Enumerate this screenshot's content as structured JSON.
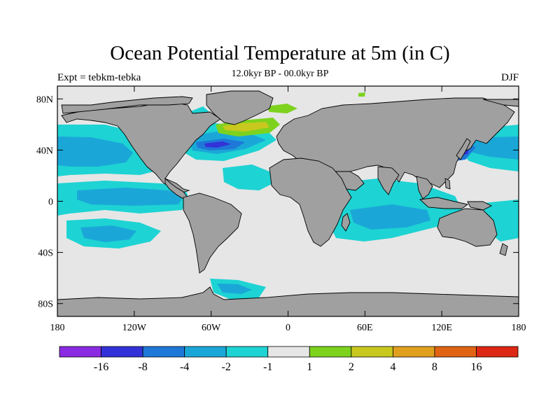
{
  "title": "Ocean Potential Temperature at 5m (in C)",
  "subtitle": "12.0kyr BP - 00.0kyr BP",
  "left_label": "Expt = tebkm-tebka",
  "right_label": "DJF",
  "lat_ticks": [
    {
      "label": "80N",
      "value": 80
    },
    {
      "label": "40N",
      "value": 40
    },
    {
      "label": "0",
      "value": 0
    },
    {
      "label": "40S",
      "value": -40
    },
    {
      "label": "80S",
      "value": -80
    }
  ],
  "lon_ticks": [
    {
      "label": "180",
      "value": -180
    },
    {
      "label": "120W",
      "value": -120
    },
    {
      "label": "60W",
      "value": -60
    },
    {
      "label": "0",
      "value": 0
    },
    {
      "label": "60E",
      "value": 60
    },
    {
      "label": "120E",
      "value": 120
    },
    {
      "label": "180",
      "value": 180
    }
  ],
  "colorbar": {
    "colors": [
      "#8a2be2",
      "#3232d8",
      "#1e78d8",
      "#1aa7d8",
      "#1ed3d3",
      "#e6e6e6",
      "#7dd21e",
      "#c8c81e",
      "#e0a01e",
      "#e06414",
      "#dc2814"
    ],
    "labels": [
      "-16",
      "-8",
      "-4",
      "-2",
      "-1",
      "1",
      "2",
      "4",
      "8",
      "16"
    ]
  },
  "colors": {
    "land": "#a0a0a0",
    "neutral": "#e6e6e6",
    "light_cyan": "#1ed3d3",
    "medium_blue": "#1aa7d8",
    "blue": "#1e78d8",
    "dark_blue": "#3232d8",
    "green": "#7dd21e",
    "yellow": "#c8c81e"
  }
}
